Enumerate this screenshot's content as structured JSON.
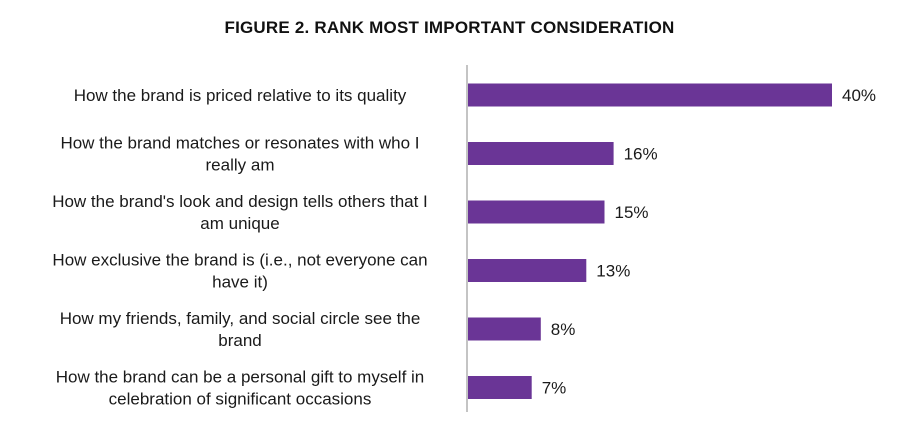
{
  "chart_data": {
    "type": "bar",
    "orientation": "horizontal",
    "title": "FIGURE 2. RANK MOST IMPORTANT CONSIDERATION",
    "categories": [
      [
        "How the brand is priced relative to its quality"
      ],
      [
        "How the brand matches or resonates with who I",
        "really am"
      ],
      [
        "How the brand's look and design tells others that I",
        "am unique"
      ],
      [
        "How exclusive the brand is (i.e., not everyone can",
        "have it)"
      ],
      [
        "How my friends, family, and social circle see the",
        "brand"
      ],
      [
        "How the brand can be a personal gift to myself in",
        "celebration of significant occasions"
      ]
    ],
    "values": [
      40,
      16,
      15,
      13,
      8,
      7
    ],
    "value_labels": [
      "40%",
      "16%",
      "15%",
      "13%",
      "8%",
      "7%"
    ],
    "unit": "%",
    "xlim": [
      0,
      40
    ],
    "grid": false,
    "legend": "none",
    "colors": {
      "bar": "#6a3596",
      "axis": "#888888"
    }
  }
}
